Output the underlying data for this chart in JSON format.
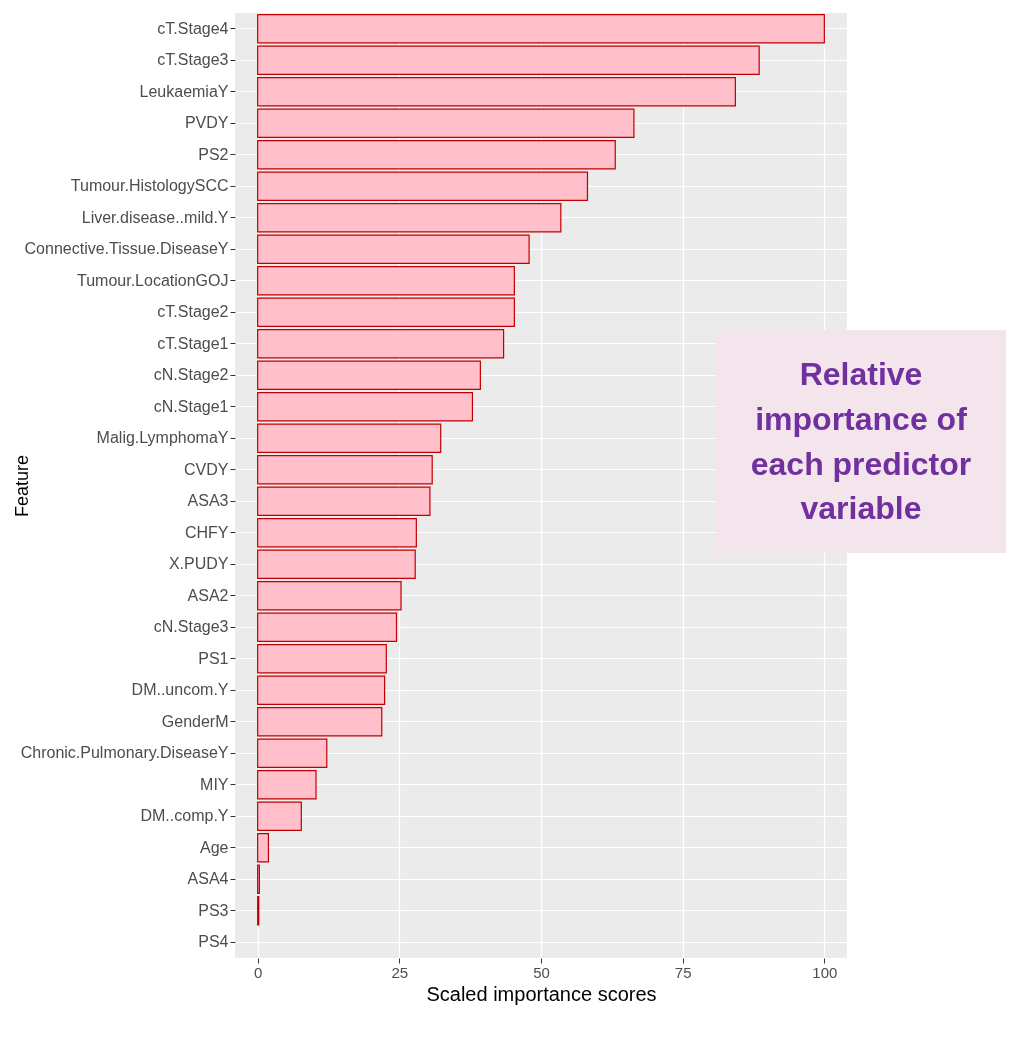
{
  "chart_data": {
    "type": "bar",
    "orientation": "horizontal",
    "xlabel": "Scaled importance scores",
    "ylabel": "Feature",
    "categories": [
      "cT.Stage4",
      "cT.Stage3",
      "LeukaemiaY",
      "PVDY",
      "PS2",
      "Tumour.HistologySCC",
      "Liver.disease..mild.Y",
      "Connective.Tissue.DiseaseY",
      "Tumour.LocationGOJ",
      "cT.Stage2",
      "cT.Stage1",
      "cN.Stage2",
      "cN.Stage1",
      "Malig.LymphomaY",
      "CVDY",
      "ASA3",
      "CHFY",
      "X.PUDY",
      "ASA2",
      "cN.Stage3",
      "PS1",
      "DM..uncom.Y",
      "GenderM",
      "Chronic.Pulmonary.DiseaseY",
      "MIY",
      "DM..comp.Y",
      "Age",
      "ASA4",
      "PS3",
      "PS4"
    ],
    "values": [
      100,
      88.5,
      84.3,
      66.4,
      63.1,
      58.2,
      53.5,
      47.9,
      45.3,
      45.3,
      43.4,
      39.3,
      37.9,
      32.3,
      30.8,
      30.4,
      28.0,
      27.8,
      25.3,
      24.5,
      22.7,
      22.4,
      21.9,
      12.2,
      10.3,
      7.7,
      1.9,
      0.3,
      0.2,
      0
    ],
    "color": "#ffc0cb",
    "xlim": [
      -4,
      104
    ],
    "xticks": [
      0,
      25,
      50,
      75,
      100
    ],
    "grid": true,
    "annotations": [
      "Relative importance of each predictor variable"
    ]
  }
}
